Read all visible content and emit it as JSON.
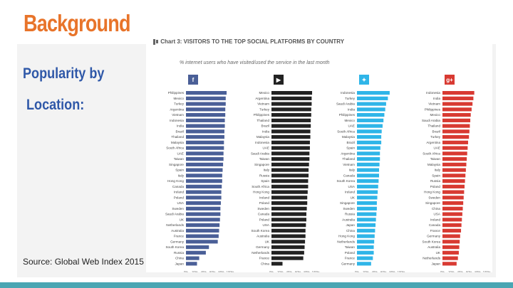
{
  "slide": {
    "title": "Background",
    "subtitle_line1": "Popularity by",
    "subtitle_line2": "Location:",
    "source": "Source: Global Web Index 2015"
  },
  "chart_header": {
    "title": "Chart 3: VISITORS TO THE TOP SOCIAL PLATFORMS BY COUNTRY",
    "subtitle": "% internet users who have visited/used the service in the last month"
  },
  "chart_data": {
    "type": "bar",
    "orientation": "horizontal",
    "x_ticks": [
      "0%",
      "20%",
      "40%",
      "60%",
      "80%",
      "100%"
    ],
    "colors": {
      "facebook": "#4a5f97",
      "youtube": "#222222",
      "twitter": "#2fb5e8",
      "googleplus": "#d83a32"
    },
    "panels": [
      {
        "name": "Facebook",
        "icon": "facebook-icon",
        "icon_text": "f",
        "color_key": "facebook",
        "categories": [
          "Philippines",
          "Mexico",
          "Turkey",
          "Argentina",
          "Vietnam",
          "Indonesia",
          "India",
          "Brazil",
          "Thailand",
          "Malaysia",
          "South Africa",
          "UAE",
          "Taiwan",
          "Singapore",
          "Spain",
          "Italy",
          "Hong Kong",
          "Canada",
          "Ireland",
          "Poland",
          "USA",
          "Sweden",
          "Saudi Arabia",
          "UK",
          "Netherlands",
          "Australia",
          "France",
          "Germany",
          "South Korea",
          "Russia",
          "China",
          "Japan"
        ],
        "values": [
          92,
          90,
          90,
          89,
          89,
          88,
          88,
          87,
          87,
          86,
          86,
          85,
          85,
          84,
          83,
          82,
          82,
          81,
          80,
          80,
          79,
          78,
          78,
          77,
          76,
          75,
          74,
          72,
          52,
          45,
          30,
          25
        ]
      },
      {
        "name": "YouTube",
        "icon": "youtube-icon",
        "icon_text": "▶",
        "color_key": "youtube",
        "categories": [
          "Mexico",
          "Argentina",
          "Vietnam",
          "Turkey",
          "Philippines",
          "Thailand",
          "Brazil",
          "India",
          "Malaysia",
          "Indonesia",
          "UAE",
          "Saudi Arabia",
          "Taiwan",
          "Singapore",
          "Italy",
          "Russia",
          "Spain",
          "South Africa",
          "Hong Kong",
          "Ireland",
          "Poland",
          "Sweden",
          "Canada",
          "Poland",
          "USA",
          "South Korea",
          "Australia",
          "UK",
          "Germany",
          "Netherlands",
          "France",
          "China"
        ],
        "values": [
          92,
          91,
          91,
          90,
          90,
          89,
          89,
          88,
          88,
          87,
          87,
          86,
          86,
          85,
          84,
          84,
          83,
          83,
          82,
          81,
          81,
          80,
          79,
          79,
          78,
          77,
          77,
          76,
          75,
          74,
          72,
          25
        ]
      },
      {
        "name": "Twitter",
        "icon": "twitter-icon",
        "icon_text": "✦",
        "color_key": "twitter",
        "categories": [
          "Indonesia",
          "Turkey",
          "Saudi Arabia",
          "India",
          "Philippines",
          "Mexico",
          "UAE",
          "South Africa",
          "Malaysia",
          "Brazil",
          "Spain",
          "Argentina",
          "Thailand",
          "Vietnam",
          "Italy",
          "Canada",
          "South Korea",
          "USA",
          "Ireland",
          "UK",
          "Singapore",
          "Sweden",
          "Russia",
          "Australia",
          "Japan",
          "China",
          "Hong Kong",
          "Netherlands",
          "Taiwan",
          "Poland",
          "France",
          "Germany"
        ],
        "values": [
          74,
          70,
          66,
          64,
          62,
          60,
          58,
          56,
          55,
          55,
          53,
          52,
          52,
          51,
          50,
          50,
          49,
          48,
          47,
          46,
          45,
          45,
          44,
          43,
          42,
          41,
          40,
          39,
          38,
          38,
          36,
          32
        ]
      },
      {
        "name": "Google+",
        "icon": "googleplus-icon",
        "icon_text": "g+",
        "color_key": "googleplus",
        "categories": [
          "Indonesia",
          "India",
          "Vietnam",
          "Philippines",
          "Mexico",
          "Saudi Arabia",
          "Thailand",
          "Brazil",
          "Turkey",
          "Argentina",
          "UAE",
          "South Africa",
          "Taiwan",
          "Malaysia",
          "Italy",
          "Spain",
          "Russia",
          "Poland",
          "Hong Kong",
          "Sweden",
          "Singapore",
          "China",
          "USA",
          "Ireland",
          "Canada",
          "France",
          "Germany",
          "South Korea",
          "Australia",
          "UK",
          "Netherlands",
          "Japan"
        ],
        "values": [
          72,
          70,
          68,
          66,
          64,
          63,
          62,
          61,
          60,
          58,
          57,
          56,
          55,
          54,
          53,
          52,
          51,
          50,
          49,
          48,
          47,
          46,
          45,
          44,
          43,
          42,
          40,
          39,
          38,
          37,
          35,
          32
        ]
      }
    ]
  }
}
